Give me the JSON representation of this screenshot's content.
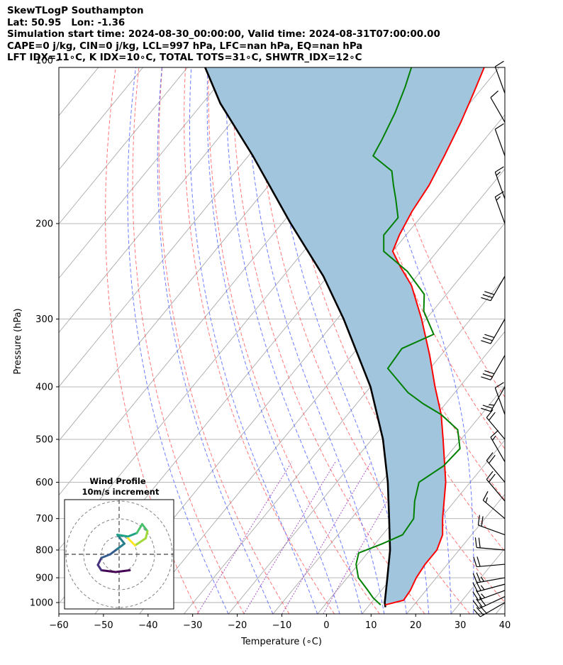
{
  "header": {
    "line1": "SkewTLogP Southampton",
    "line2": "Lat: 50.95   Lon: -1.36",
    "line3": "Simulation start time: 2024-08-30_00:00:00, Valid time: 2024-08-31T07:00:00.00",
    "line4": "CAPE=0 j/kg, CIN=0 j/kg, LCL=997 hPa, LFC=nan hPa, EQ=nan hPa",
    "line5": "LFT IDX=11∘C, K IDX=10∘C, TOTAL TOTS=31∘C, SHWTR_IDX=12∘C"
  },
  "colors": {
    "temperature": "#ff0000",
    "dewpoint": "#008000",
    "parcel": "#000000",
    "cape_fill": "#a2c5de",
    "dry_adiabat": "#ff5555",
    "moist_adiabat": "#4a5cff",
    "mixing_ratio": "#a040c0",
    "isotherm": "#aaaaaa"
  },
  "chart_data": {
    "type": "skewt-logp",
    "xlabel": "Temperature (∘C)",
    "ylabel": "Pressure (hPa)",
    "xlim": [
      -60,
      40
    ],
    "ylim": [
      1040,
      100
    ],
    "x_ticks": [
      "−60",
      "−50",
      "−40",
      "−30",
      "−20",
      "−10",
      "0",
      "10",
      "20",
      "30",
      "40"
    ],
    "y_ticks": [
      "100",
      "200",
      "300",
      "400",
      "500",
      "600",
      "700",
      "800",
      "900",
      "1000"
    ],
    "grid": true,
    "temperature_profile": [
      {
        "p": 1010,
        "t": 13.5
      },
      {
        "p": 990,
        "t": 16.8
      },
      {
        "p": 950,
        "t": 16.5
      },
      {
        "p": 900,
        "t": 15.5
      },
      {
        "p": 850,
        "t": 15.0
      },
      {
        "p": 800,
        "t": 15.0
      },
      {
        "p": 750,
        "t": 13.5
      },
      {
        "p": 700,
        "t": 10.5
      },
      {
        "p": 600,
        "t": 4.5
      },
      {
        "p": 500,
        "t": -4.0
      },
      {
        "p": 450,
        "t": -9.0
      },
      {
        "p": 400,
        "t": -15.5
      },
      {
        "p": 350,
        "t": -22.5
      },
      {
        "p": 300,
        "t": -31.0
      },
      {
        "p": 260,
        "t": -39.5
      },
      {
        "p": 240,
        "t": -45.5
      },
      {
        "p": 225,
        "t": -50.0
      },
      {
        "p": 210,
        "t": -51.5
      },
      {
        "p": 190,
        "t": -53.0
      },
      {
        "p": 170,
        "t": -54.0
      },
      {
        "p": 150,
        "t": -56.0
      },
      {
        "p": 130,
        "t": -58.5
      },
      {
        "p": 115,
        "t": -61.0
      },
      {
        "p": 100,
        "t": -64.0
      }
    ],
    "dewpoint_profile": [
      {
        "p": 1010,
        "t": 12.5
      },
      {
        "p": 980,
        "t": 9.5
      },
      {
        "p": 950,
        "t": 7.0
      },
      {
        "p": 900,
        "t": 2.5
      },
      {
        "p": 850,
        "t": -0.5
      },
      {
        "p": 810,
        "t": -2.0
      },
      {
        "p": 780,
        "t": 1.5
      },
      {
        "p": 750,
        "t": 4.5
      },
      {
        "p": 700,
        "t": 4.0
      },
      {
        "p": 650,
        "t": 1.0
      },
      {
        "p": 600,
        "t": -1.5
      },
      {
        "p": 560,
        "t": 1.0
      },
      {
        "p": 520,
        "t": 1.5
      },
      {
        "p": 480,
        "t": -2.5
      },
      {
        "p": 450,
        "t": -9.0
      },
      {
        "p": 430,
        "t": -15.0
      },
      {
        "p": 410,
        "t": -20.5
      },
      {
        "p": 370,
        "t": -29.5
      },
      {
        "p": 340,
        "t": -30.0
      },
      {
        "p": 320,
        "t": -25.5
      },
      {
        "p": 290,
        "t": -32.0
      },
      {
        "p": 270,
        "t": -35.0
      },
      {
        "p": 245,
        "t": -43.0
      },
      {
        "p": 225,
        "t": -52.0
      },
      {
        "p": 210,
        "t": -55.0
      },
      {
        "p": 195,
        "t": -55.0
      },
      {
        "p": 180,
        "t": -59.0
      },
      {
        "p": 170,
        "t": -62.0
      },
      {
        "p": 160,
        "t": -65.0
      },
      {
        "p": 150,
        "t": -72.0
      },
      {
        "p": 140,
        "t": -73.0
      },
      {
        "p": 125,
        "t": -75.0
      },
      {
        "p": 112,
        "t": -77.5
      },
      {
        "p": 100,
        "t": -80.5
      }
    ],
    "parcel_profile": [
      {
        "p": 1020,
        "t": 14.0
      },
      {
        "p": 1000,
        "t": 13.0
      },
      {
        "p": 900,
        "t": 9.0
      },
      {
        "p": 800,
        "t": 4.5
      },
      {
        "p": 700,
        "t": -1.5
      },
      {
        "p": 600,
        "t": -8.5
      },
      {
        "p": 500,
        "t": -17.5
      },
      {
        "p": 400,
        "t": -30.0
      },
      {
        "p": 300,
        "t": -48.5
      },
      {
        "p": 250,
        "t": -61.0
      },
      {
        "p": 200,
        "t": -78.0
      },
      {
        "p": 150,
        "t": -99.0
      },
      {
        "p": 120,
        "t": -116.0
      },
      {
        "p": 100,
        "t": -128.0
      }
    ],
    "wind_barbs": [
      {
        "p": 1000,
        "speed_kt": 30,
        "dir": 240
      },
      {
        "p": 975,
        "speed_kt": 30,
        "dir": 245
      },
      {
        "p": 950,
        "speed_kt": 25,
        "dir": 250
      },
      {
        "p": 925,
        "speed_kt": 25,
        "dir": 255
      },
      {
        "p": 900,
        "speed_kt": 25,
        "dir": 260
      },
      {
        "p": 850,
        "speed_kt": 20,
        "dir": 265
      },
      {
        "p": 800,
        "speed_kt": 20,
        "dir": 275
      },
      {
        "p": 750,
        "speed_kt": 20,
        "dir": 290
      },
      {
        "p": 700,
        "speed_kt": 15,
        "dir": 310
      },
      {
        "p": 650,
        "speed_kt": 20,
        "dir": 320
      },
      {
        "p": 600,
        "speed_kt": 20,
        "dir": 320
      },
      {
        "p": 550,
        "speed_kt": 15,
        "dir": 330
      },
      {
        "p": 500,
        "speed_kt": 20,
        "dir": 320
      },
      {
        "p": 450,
        "speed_kt": 10,
        "dir": 340
      },
      {
        "p": 400,
        "speed_kt": 25,
        "dir": 210
      },
      {
        "p": 350,
        "speed_kt": 30,
        "dir": 210
      },
      {
        "p": 300,
        "speed_kt": 30,
        "dir": 210
      },
      {
        "p": 250,
        "speed_kt": 30,
        "dir": 210
      },
      {
        "p": 200,
        "speed_kt": 15,
        "dir": 340
      },
      {
        "p": 180,
        "speed_kt": 15,
        "dir": 340
      },
      {
        "p": 150,
        "speed_kt": 10,
        "dir": 340
      },
      {
        "p": 130,
        "speed_kt": 10,
        "dir": 330
      },
      {
        "p": 115,
        "speed_kt": 10,
        "dir": 340
      }
    ],
    "inset": {
      "title": "Wind Profile",
      "subtitle": "10m/s increment",
      "hodograph": [
        {
          "u": 0.6,
          "v": -0.9
        },
        {
          "u": -0.2,
          "v": -1.0
        },
        {
          "u": -1.0,
          "v": -0.9
        },
        {
          "u": -1.2,
          "v": -0.6
        },
        {
          "u": -1.0,
          "v": -0.2
        },
        {
          "u": -0.5,
          "v": 0.0
        },
        {
          "u": -0.1,
          "v": 0.3
        },
        {
          "u": 0.3,
          "v": 0.6
        },
        {
          "u": -0.1,
          "v": 1.1
        },
        {
          "u": 0.5,
          "v": 1.0
        },
        {
          "u": 1.0,
          "v": 1.2
        },
        {
          "u": 1.3,
          "v": 1.7
        },
        {
          "u": 1.6,
          "v": 1.3
        },
        {
          "u": 1.5,
          "v": 0.9
        },
        {
          "u": 0.9,
          "v": 0.5
        },
        {
          "u": 0.5,
          "v": 0.9
        }
      ]
    }
  }
}
